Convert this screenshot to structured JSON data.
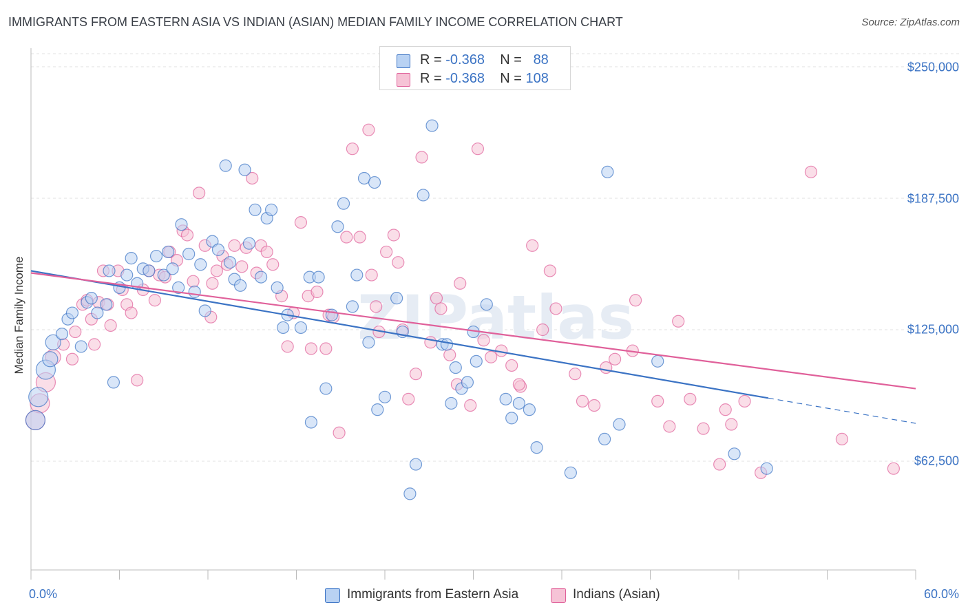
{
  "title": "IMMIGRANTS FROM EASTERN ASIA VS INDIAN (ASIAN) MEDIAN FAMILY INCOME CORRELATION CHART",
  "source": "Source: ZipAtlas.com",
  "watermark": "ZIPatlas",
  "legend_stats": [
    {
      "r_label": "R =",
      "r_value": "-0.368",
      "n_label": "N =",
      "n_value": "88"
    },
    {
      "r_label": "R =",
      "r_value": "-0.368",
      "n_label": "N =",
      "n_value": "108"
    }
  ],
  "chart_data": {
    "type": "scatter",
    "title": "IMMIGRANTS FROM EASTERN ASIA VS INDIAN (ASIAN) MEDIAN FAMILY INCOME CORRELATION CHART",
    "xlabel": "",
    "ylabel": "Median Family Income",
    "x_tick_labels": [
      "0.0%",
      "60.0%"
    ],
    "y_tick_labels": [
      "$62,500",
      "$125,000",
      "$187,500",
      "$250,000"
    ],
    "y_ticks": [
      62500,
      125000,
      187500,
      250000
    ],
    "xlim": [
      0,
      60
    ],
    "ylim": [
      0,
      262000
    ],
    "grid": true,
    "legend_position": "bottom",
    "colors": {
      "series1": "#3b73c4",
      "series2": "#e0609a",
      "series1_fill": "#b9d2f3",
      "series2_fill": "#f6c3d6"
    },
    "series": [
      {
        "name": "Immigrants from Eastern Asia",
        "trend": {
          "x": [
            0,
            50
          ],
          "y": [
            153000,
            92500
          ],
          "dashed_to": [
            60,
            80500
          ]
        },
        "points": [
          [
            0.3,
            82000
          ],
          [
            0.5,
            93000
          ],
          [
            1.0,
            106000
          ],
          [
            1.3,
            111000
          ],
          [
            1.5,
            119000
          ],
          [
            2.1,
            123000
          ],
          [
            2.5,
            130000
          ],
          [
            2.8,
            133000
          ],
          [
            3.4,
            117000
          ],
          [
            3.8,
            138000
          ],
          [
            4.1,
            140000
          ],
          [
            4.5,
            133000
          ],
          [
            5.1,
            137000
          ],
          [
            5.3,
            153000
          ],
          [
            5.6,
            100000
          ],
          [
            6.0,
            145000
          ],
          [
            6.5,
            151000
          ],
          [
            6.8,
            159000
          ],
          [
            7.2,
            147000
          ],
          [
            7.6,
            154000
          ],
          [
            8.0,
            153000
          ],
          [
            8.5,
            160000
          ],
          [
            9.0,
            151000
          ],
          [
            9.3,
            162000
          ],
          [
            9.6,
            154000
          ],
          [
            10.0,
            145000
          ],
          [
            10.2,
            175000
          ],
          [
            10.7,
            161000
          ],
          [
            11.1,
            143000
          ],
          [
            11.5,
            156000
          ],
          [
            11.8,
            134000
          ],
          [
            12.3,
            167000
          ],
          [
            12.7,
            163000
          ],
          [
            13.2,
            203000
          ],
          [
            13.5,
            157000
          ],
          [
            13.8,
            149000
          ],
          [
            14.2,
            146000
          ],
          [
            14.5,
            201000
          ],
          [
            14.8,
            166000
          ],
          [
            15.2,
            182000
          ],
          [
            15.6,
            150000
          ],
          [
            16.0,
            178000
          ],
          [
            16.3,
            182000
          ],
          [
            16.7,
            145000
          ],
          [
            17.1,
            126000
          ],
          [
            17.4,
            132000
          ],
          [
            18.3,
            126000
          ],
          [
            18.9,
            150000
          ],
          [
            19.0,
            81000
          ],
          [
            19.5,
            150000
          ],
          [
            20.0,
            97000
          ],
          [
            20.4,
            132000
          ],
          [
            20.8,
            174000
          ],
          [
            21.2,
            185000
          ],
          [
            21.8,
            136000
          ],
          [
            22.1,
            151000
          ],
          [
            22.6,
            197000
          ],
          [
            22.9,
            119000
          ],
          [
            23.3,
            195000
          ],
          [
            23.5,
            87000
          ],
          [
            24.0,
            93000
          ],
          [
            24.8,
            140000
          ],
          [
            25.2,
            124000
          ],
          [
            25.7,
            47000
          ],
          [
            26.1,
            61000
          ],
          [
            26.6,
            189000
          ],
          [
            27.2,
            222000
          ],
          [
            27.9,
            118000
          ],
          [
            28.2,
            118000
          ],
          [
            28.5,
            90000
          ],
          [
            28.8,
            107000
          ],
          [
            29.2,
            97000
          ],
          [
            29.6,
            100000
          ],
          [
            30.0,
            124000
          ],
          [
            30.2,
            110000
          ],
          [
            30.9,
            137000
          ],
          [
            32.2,
            92000
          ],
          [
            33.1,
            90000
          ],
          [
            32.6,
            83000
          ],
          [
            33.8,
            87000
          ],
          [
            34.3,
            69000
          ],
          [
            36.6,
            57000
          ],
          [
            38.9,
            73000
          ],
          [
            39.1,
            200000
          ],
          [
            39.9,
            80000
          ],
          [
            42.5,
            110000
          ],
          [
            47.7,
            66000
          ],
          [
            49.9,
            59000
          ]
        ]
      },
      {
        "name": "Indians (Asian)",
        "trend": {
          "x": [
            0,
            60
          ],
          "y": [
            152000,
            97000
          ]
        },
        "points": [
          [
            0.3,
            82000
          ],
          [
            0.6,
            90000
          ],
          [
            1.0,
            100000
          ],
          [
            1.5,
            112000
          ],
          [
            2.2,
            118000
          ],
          [
            2.8,
            111000
          ],
          [
            3.0,
            124000
          ],
          [
            3.5,
            137000
          ],
          [
            3.8,
            139000
          ],
          [
            4.1,
            130000
          ],
          [
            4.6,
            138000
          ],
          [
            4.9,
            153000
          ],
          [
            5.2,
            137000
          ],
          [
            5.4,
            127000
          ],
          [
            5.9,
            153000
          ],
          [
            6.2,
            144000
          ],
          [
            6.5,
            137000
          ],
          [
            6.8,
            133000
          ],
          [
            7.2,
            101000
          ],
          [
            7.6,
            144000
          ],
          [
            8.0,
            153000
          ],
          [
            8.4,
            139000
          ],
          [
            8.7,
            151000
          ],
          [
            9.1,
            150000
          ],
          [
            9.4,
            162000
          ],
          [
            9.9,
            158000
          ],
          [
            10.3,
            172000
          ],
          [
            10.6,
            170000
          ],
          [
            11.0,
            148000
          ],
          [
            11.4,
            190000
          ],
          [
            11.8,
            165000
          ],
          [
            12.2,
            131000
          ],
          [
            12.6,
            153000
          ],
          [
            13.0,
            160000
          ],
          [
            13.3,
            156000
          ],
          [
            13.8,
            165000
          ],
          [
            14.3,
            155000
          ],
          [
            14.6,
            164000
          ],
          [
            15.0,
            197000
          ],
          [
            15.3,
            152000
          ],
          [
            15.6,
            165000
          ],
          [
            16.0,
            162000
          ],
          [
            16.4,
            156000
          ],
          [
            17.0,
            141000
          ],
          [
            17.4,
            117000
          ],
          [
            17.8,
            133000
          ],
          [
            18.3,
            176000
          ],
          [
            18.8,
            141000
          ],
          [
            19.0,
            116000
          ],
          [
            19.4,
            143000
          ],
          [
            20.0,
            116000
          ],
          [
            20.2,
            132000
          ],
          [
            20.5,
            131000
          ],
          [
            20.9,
            76000
          ],
          [
            21.4,
            169000
          ],
          [
            21.8,
            211000
          ],
          [
            22.3,
            169000
          ],
          [
            22.9,
            220000
          ],
          [
            23.1,
            151000
          ],
          [
            23.6,
            124000
          ],
          [
            24.1,
            162000
          ],
          [
            24.6,
            170000
          ],
          [
            24.9,
            157000
          ],
          [
            25.2,
            125000
          ],
          [
            25.6,
            92000
          ],
          [
            26.1,
            104000
          ],
          [
            26.5,
            207000
          ],
          [
            27.1,
            119000
          ],
          [
            27.5,
            140000
          ],
          [
            27.8,
            135000
          ],
          [
            28.4,
            113000
          ],
          [
            28.9,
            99000
          ],
          [
            29.1,
            147000
          ],
          [
            29.8,
            89000
          ],
          [
            30.3,
            211000
          ],
          [
            30.7,
            120000
          ],
          [
            31.2,
            112000
          ],
          [
            31.9,
            115000
          ],
          [
            32.6,
            108000
          ],
          [
            33.2,
            98000
          ],
          [
            34.0,
            165000
          ],
          [
            34.7,
            125000
          ],
          [
            35.2,
            153000
          ],
          [
            35.6,
            135000
          ],
          [
            36.9,
            104000
          ],
          [
            37.4,
            91000
          ],
          [
            38.2,
            89000
          ],
          [
            39.0,
            107000
          ],
          [
            39.6,
            111000
          ],
          [
            40.8,
            115000
          ],
          [
            41.0,
            139000
          ],
          [
            42.5,
            91000
          ],
          [
            43.3,
            79000
          ],
          [
            43.9,
            129000
          ],
          [
            44.7,
            92000
          ],
          [
            45.6,
            78000
          ],
          [
            46.7,
            61000
          ],
          [
            47.1,
            87000
          ],
          [
            47.5,
            80000
          ],
          [
            48.4,
            91000
          ],
          [
            49.5,
            57000
          ],
          [
            52.9,
            200000
          ],
          [
            55.0,
            73000
          ],
          [
            58.5,
            59000
          ],
          [
            4.3,
            118000
          ],
          [
            12.3,
            147000
          ],
          [
            23.4,
            136000
          ],
          [
            33.1,
            99000
          ]
        ]
      }
    ]
  }
}
